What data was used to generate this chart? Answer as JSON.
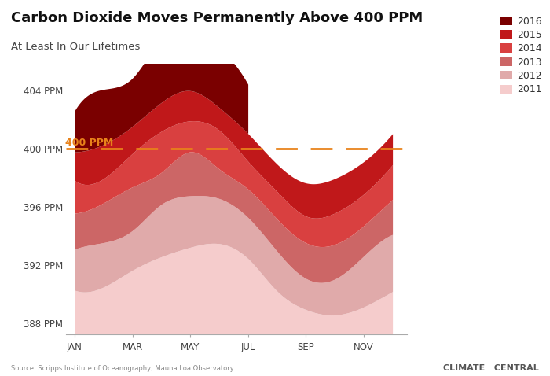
{
  "title": "Carbon Dioxide Moves Permanently Above 400 PPM",
  "subtitle": "At Least In Our Lifetimes",
  "source_text": "Source: Scripps Institute of Oceanography, Mauna Loa Observatory",
  "brand_text": "CLIMATE   CENTRAL",
  "ylabel_text": "400 PPM",
  "dashed_line_y": 400,
  "ylim": [
    387.2,
    405.8
  ],
  "yticks": [
    388,
    392,
    396,
    400,
    404
  ],
  "ytick_labels": [
    "388 PPM",
    "392 PPM",
    "396 PPM",
    "400 PPM",
    "404 PPM"
  ],
  "xtick_positions": [
    0,
    2,
    4,
    6,
    8,
    10
  ],
  "xtick_labels": [
    "JAN",
    "MAR",
    "MAY",
    "JUL",
    "SEP",
    "NOV"
  ],
  "colors": {
    "2016": "#7A0000",
    "2015": "#C0181A",
    "2014": "#D94040",
    "2013": "#CC6666",
    "2012": "#E0AAAA",
    "2011": "#F5CCCC"
  },
  "background_color": "#FFFFFF",
  "years": [
    "2011",
    "2012",
    "2013",
    "2014",
    "2015",
    "2016"
  ],
  "data": {
    "2011": [
      390.25,
      390.47,
      391.62,
      392.55,
      393.2,
      393.45,
      392.42,
      390.2,
      388.92,
      388.55,
      389.1,
      390.16
    ],
    "2012": [
      393.07,
      393.52,
      394.35,
      396.15,
      396.74,
      396.55,
      395.24,
      392.94,
      391.06,
      391.01,
      392.59,
      394.08
    ],
    "2013": [
      395.55,
      396.25,
      397.35,
      398.35,
      399.76,
      398.58,
      397.2,
      395.15,
      393.51,
      393.4,
      394.68,
      396.48
    ],
    "2014": [
      397.79,
      397.92,
      399.65,
      401.17,
      401.88,
      401.25,
      399.1,
      397.04,
      395.35,
      395.55,
      396.85,
      398.87
    ],
    "2015": [
      399.75,
      400.26,
      401.52,
      403.15,
      403.96,
      402.8,
      401.01,
      398.92,
      397.62,
      397.92,
      399.08,
      401.01
    ],
    "2016": [
      402.59,
      404.05,
      404.83,
      407.42,
      407.7,
      406.81,
      404.39,
      null,
      null,
      null,
      null,
      null
    ]
  }
}
